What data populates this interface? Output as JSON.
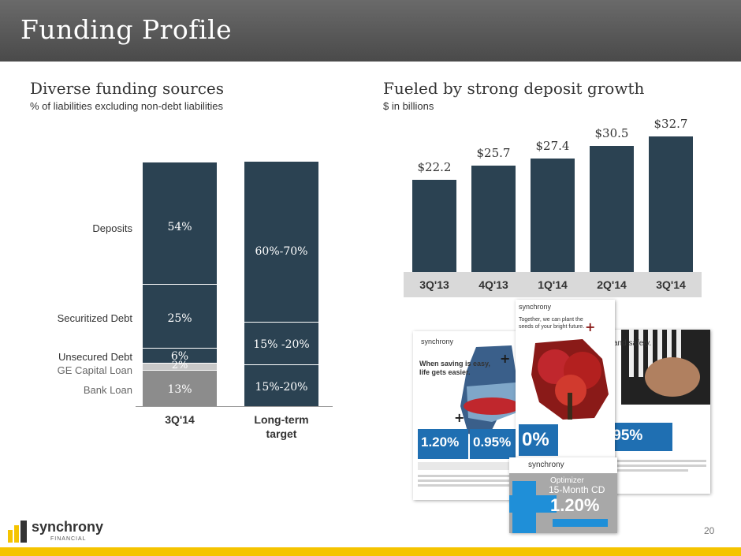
{
  "header": {
    "title": "Funding Profile"
  },
  "left": {
    "title": "Diverse funding sources",
    "subtitle": "% of liabilities excluding non-debt liabilities",
    "row_labels": [
      "Deposits",
      "Securitized Debt",
      "Unsecured Debt",
      "GE Capital Loan",
      "Bank Loan"
    ],
    "bars": [
      {
        "category": "3Q'14",
        "segments": [
          "54%",
          "25%",
          "6%",
          "2%",
          "13%"
        ]
      },
      {
        "category": "Long-term target",
        "category_line1": "Long-term",
        "category_line2": "target",
        "segments": [
          "60%-70%",
          "15% -20%",
          "15%-20%"
        ]
      }
    ],
    "colors": {
      "dark": "#2b4252",
      "gray": "#a6a6a6",
      "light_gray": "#c8c8c8",
      "mid_gray": "#8c8c8c"
    }
  },
  "chart_data": {
    "type": "bar",
    "title": "Fueled by strong deposit growth",
    "ylabel": "$ in billions",
    "categories": [
      "3Q'13",
      "4Q'13",
      "1Q'14",
      "2Q'14",
      "3Q'14"
    ],
    "values": [
      22.2,
      25.7,
      27.4,
      30.5,
      32.7
    ],
    "labels": [
      "$22.2",
      "$25.7",
      "$27.4",
      "$30.5",
      "$32.7"
    ],
    "ylim": [
      0,
      32.7
    ]
  },
  "ads": {
    "ad1": {
      "brand": "synchrony",
      "headline1": "When saving is easy,",
      "headline2": "life gets easier.",
      "rate1": "1.20%",
      "rate2": "0.95%"
    },
    "ad2": {
      "brand": "synchrony",
      "headline1": "Together, we can plant the",
      "headline2": "seeds of your bright future.",
      "rate": "0%"
    },
    "ad3": {
      "text": "and safety.",
      "rate": ".95%"
    },
    "ad4": {
      "brand": "synchrony",
      "product": "Optimizer",
      "term": "15-Month CD",
      "rate": "1.20%"
    }
  },
  "footer": {
    "brand": "synchrony",
    "brand_sub": "FINANCIAL",
    "page_number": "20",
    "accent": "#f5c400"
  }
}
